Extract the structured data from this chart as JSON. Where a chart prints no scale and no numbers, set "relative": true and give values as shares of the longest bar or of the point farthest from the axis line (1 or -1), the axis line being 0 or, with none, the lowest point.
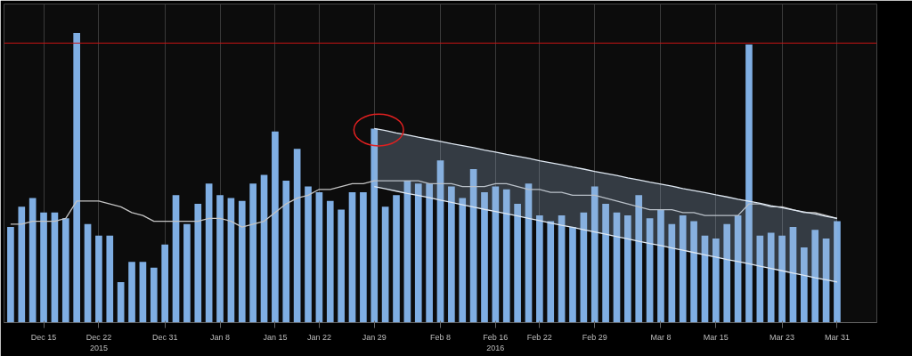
{
  "chart_data": {
    "type": "bar",
    "relative": true,
    "grid": "x",
    "categories": [
      null,
      null,
      null,
      "Dec 15",
      null,
      null,
      null,
      null,
      "Dec 22\n2015",
      null,
      null,
      null,
      null,
      null,
      "Dec 31",
      null,
      null,
      null,
      null,
      "Jan 8",
      null,
      null,
      null,
      null,
      "Jan 15",
      null,
      null,
      null,
      "Jan 22",
      null,
      null,
      null,
      null,
      "Jan 29",
      null,
      null,
      null,
      null,
      null,
      "Feb 8",
      null,
      null,
      null,
      null,
      "Feb 16\n2016",
      null,
      null,
      null,
      "Feb 22",
      null,
      null,
      null,
      null,
      "Feb 29",
      null,
      null,
      null,
      null,
      null,
      "Mar 8",
      null,
      null,
      null,
      null,
      "Mar 15",
      null,
      null,
      null,
      null,
      null,
      "Mar 23",
      null,
      null,
      null,
      null,
      "Mar 31"
    ],
    "series": [
      {
        "color": "#7faee3",
        "values": [
          0.33,
          0.4,
          0.43,
          0.38,
          0.38,
          0.36,
          1.0,
          0.34,
          0.3,
          0.3,
          0.14,
          0.21,
          0.21,
          0.19,
          0.27,
          0.44,
          0.34,
          0.41,
          0.48,
          0.44,
          0.43,
          0.42,
          0.48,
          0.51,
          0.66,
          0.49,
          0.6,
          0.47,
          0.45,
          0.42,
          0.39,
          0.45,
          0.45,
          0.67,
          0.4,
          0.44,
          0.49,
          0.48,
          0.48,
          0.56,
          0.47,
          0.43,
          0.53,
          0.45,
          0.47,
          0.46,
          0.41,
          0.48,
          0.37,
          0.35,
          0.37,
          0.33,
          0.38,
          0.47,
          0.41,
          0.38,
          0.37,
          0.44,
          0.36,
          0.39,
          0.34,
          0.37,
          0.35,
          0.3,
          0.29,
          0.34,
          0.37,
          0.96,
          0.3,
          0.31,
          0.3,
          0.33,
          0.26,
          0.32,
          0.29,
          0.35
        ]
      },
      {
        "type": "line",
        "color": "#c4c4c4",
        "values": [
          0.34,
          0.34,
          0.35,
          0.35,
          0.35,
          0.36,
          0.42,
          0.42,
          0.42,
          0.41,
          0.4,
          0.38,
          0.37,
          0.35,
          0.35,
          0.35,
          0.35,
          0.35,
          0.36,
          0.36,
          0.35,
          0.33,
          0.34,
          0.35,
          0.38,
          0.41,
          0.43,
          0.44,
          0.46,
          0.46,
          0.47,
          0.48,
          0.48,
          0.49,
          0.49,
          0.49,
          0.49,
          0.49,
          0.48,
          0.48,
          0.48,
          0.47,
          0.47,
          0.47,
          0.48,
          0.48,
          0.47,
          0.46,
          0.46,
          0.45,
          0.45,
          0.44,
          0.44,
          0.44,
          0.43,
          0.42,
          0.41,
          0.4,
          0.39,
          0.39,
          0.39,
          0.38,
          0.38,
          0.37,
          0.37,
          0.37,
          0.37,
          0.41,
          0.41,
          0.4,
          0.4,
          0.39,
          0.38,
          0.38,
          0.37,
          0.36
        ]
      },
      {
        "type": "line",
        "color": "#dfe8f2",
        "values": [
          null,
          null,
          null,
          null,
          null,
          null,
          null,
          null,
          null,
          null,
          null,
          null,
          null,
          null,
          null,
          null,
          null,
          null,
          null,
          null,
          null,
          null,
          null,
          null,
          null,
          null,
          null,
          null,
          null,
          null,
          null,
          null,
          null,
          0.67,
          0.663,
          0.655,
          0.648,
          0.64,
          0.633,
          0.626,
          0.618,
          0.611,
          0.604,
          0.596,
          0.589,
          0.581,
          0.574,
          0.567,
          0.559,
          0.552,
          0.545,
          0.537,
          0.53,
          0.522,
          0.515,
          0.508,
          0.5,
          0.493,
          0.485,
          0.478,
          0.471,
          0.463,
          0.456,
          0.449,
          0.441,
          0.434,
          0.426,
          0.419,
          0.412,
          0.404,
          0.397,
          0.389,
          0.382,
          0.375,
          0.367,
          0.36
        ],
        "upper": [
          null,
          null,
          null,
          null,
          null,
          null,
          null,
          null,
          null,
          null,
          null,
          null,
          null,
          null,
          null,
          null,
          null,
          null,
          null,
          null,
          null,
          null,
          null,
          null,
          null,
          null,
          null,
          null,
          null,
          null,
          null,
          null,
          null,
          0.67,
          0.663,
          0.655,
          0.648,
          0.64,
          0.633,
          0.626,
          0.618,
          0.611,
          0.604,
          0.596,
          0.589,
          0.581,
          0.574,
          0.567,
          0.559,
          0.552,
          0.545,
          0.537,
          0.53,
          0.522,
          0.515,
          0.508,
          0.5,
          0.493,
          0.485,
          0.478,
          0.471,
          0.463,
          0.456,
          0.449,
          0.441,
          0.434,
          0.426,
          0.419,
          0.412,
          0.404,
          0.397,
          0.389,
          0.382,
          0.375,
          0.367,
          0.36
        ],
        "lower": [
          null,
          null,
          null,
          null,
          null,
          null,
          null,
          null,
          null,
          null,
          null,
          null,
          null,
          null,
          null,
          null,
          null,
          null,
          null,
          null,
          null,
          null,
          null,
          null,
          null,
          null,
          null,
          null,
          null,
          null,
          null,
          null,
          null,
          0.47,
          0.462,
          0.454,
          0.446,
          0.439,
          0.431,
          0.423,
          0.415,
          0.407,
          0.399,
          0.391,
          0.384,
          0.376,
          0.368,
          0.36,
          0.352,
          0.344,
          0.336,
          0.329,
          0.321,
          0.313,
          0.305,
          0.297,
          0.289,
          0.281,
          0.273,
          0.266,
          0.258,
          0.25,
          0.242,
          0.234,
          0.226,
          0.218,
          0.211,
          0.203,
          0.195,
          0.187,
          0.179,
          0.171,
          0.163,
          0.155,
          0.148,
          0.14
        ]
      },
      {
        "type": "line",
        "color": "#dfe8f2",
        "values": [
          null,
          null,
          null,
          null,
          null,
          null,
          null,
          null,
          null,
          null,
          null,
          null,
          null,
          null,
          null,
          null,
          null,
          null,
          null,
          null,
          null,
          null,
          null,
          null,
          null,
          null,
          null,
          null,
          null,
          null,
          null,
          null,
          null,
          0.47,
          0.462,
          0.454,
          0.446,
          0.439,
          0.431,
          0.423,
          0.415,
          0.407,
          0.399,
          0.391,
          0.384,
          0.376,
          0.368,
          0.36,
          0.352,
          0.344,
          0.336,
          0.329,
          0.321,
          0.313,
          0.305,
          0.297,
          0.289,
          0.281,
          0.273,
          0.266,
          0.258,
          0.25,
          0.242,
          0.234,
          0.226,
          0.218,
          0.211,
          0.203,
          0.195,
          0.187,
          0.179,
          0.171,
          0.163,
          0.155,
          0.148,
          0.14
        ]
      }
    ],
    "ref_lines": [
      {
        "axis": "y",
        "value": 0.965,
        "color": "#c81414"
      }
    ]
  }
}
